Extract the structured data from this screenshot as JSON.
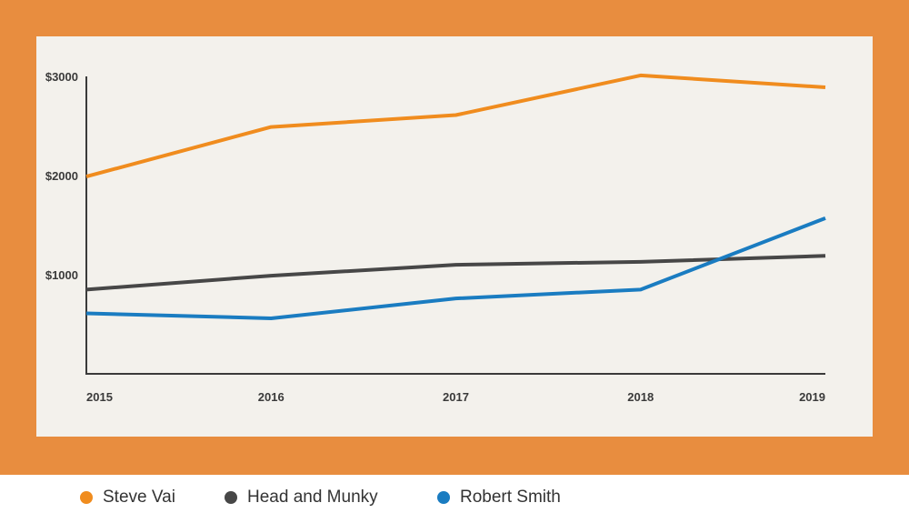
{
  "chart_data": {
    "type": "line",
    "title": "",
    "xlabel": "",
    "ylabel": "",
    "categories": [
      "2015",
      "2016",
      "2017",
      "2018",
      "2019"
    ],
    "y_ticks": [
      {
        "value": 1000,
        "label": "$1000"
      },
      {
        "value": 2000,
        "label": "$2000"
      },
      {
        "value": 3000,
        "label": "$3000"
      }
    ],
    "ylim": [
      0,
      3000
    ],
    "grid": false,
    "legend_position": "bottom",
    "series": [
      {
        "name": "Steve Vai",
        "color": "#F08C1E",
        "values": [
          1990,
          2490,
          2610,
          3010,
          2890
        ]
      },
      {
        "name": "Head and Munky",
        "color": "#474747",
        "values": [
          850,
          990,
          1100,
          1130,
          1190
        ]
      },
      {
        "name": "Robert Smith",
        "color": "#1A7CC1",
        "values": [
          610,
          560,
          760,
          850,
          1570
        ]
      }
    ]
  },
  "colors": {
    "frame": "#E88D3F",
    "panel": "#F3F1EC",
    "axis": "#3a3a3a"
  }
}
